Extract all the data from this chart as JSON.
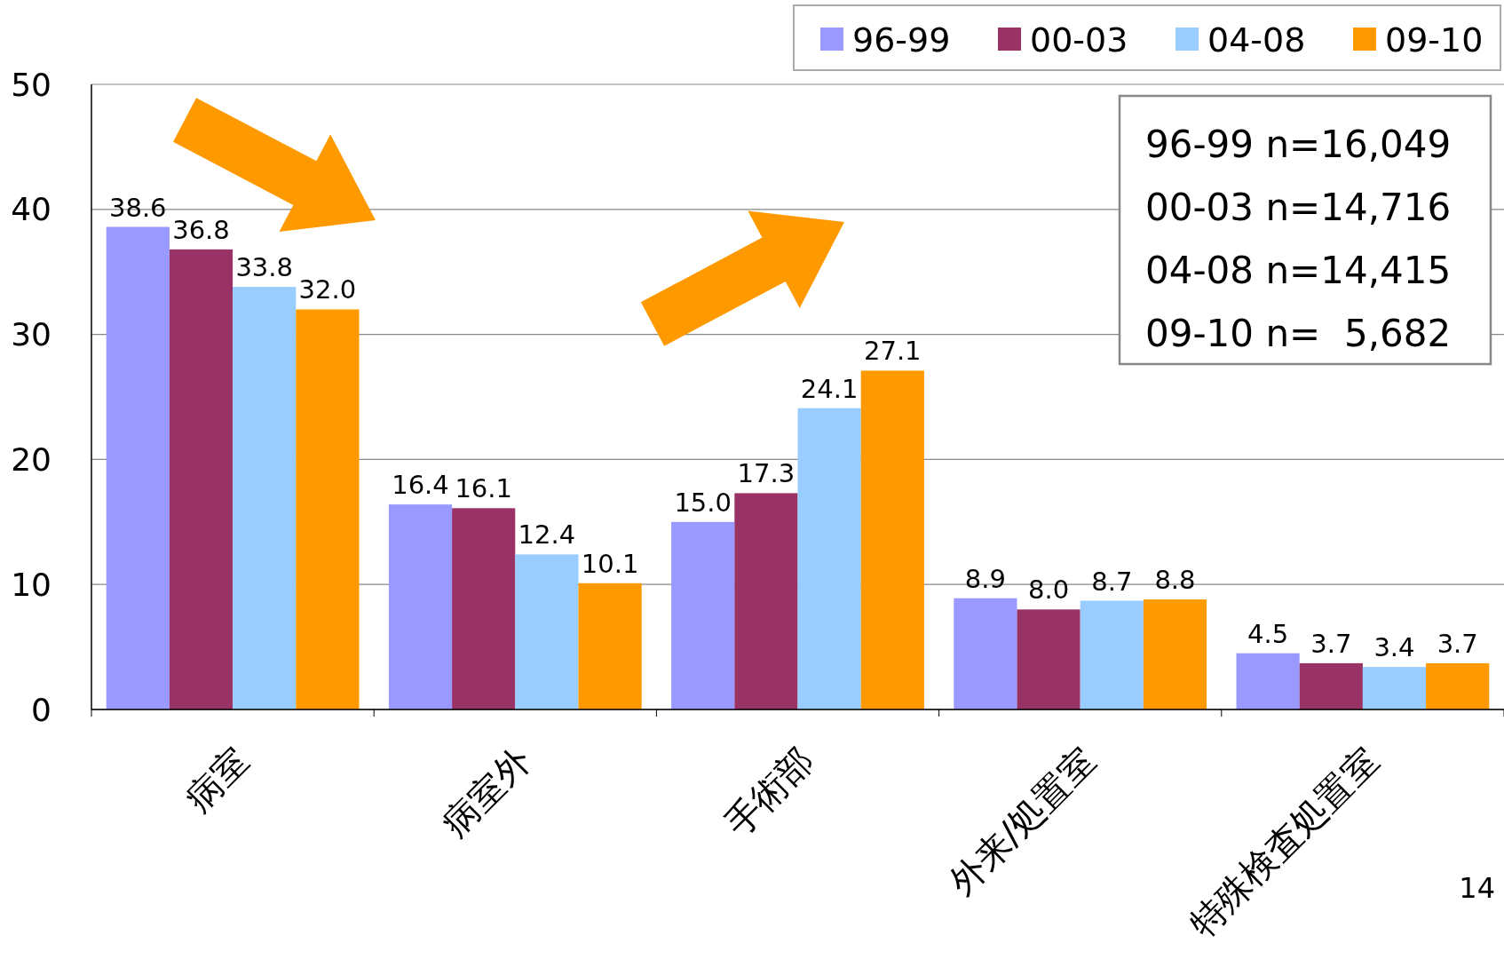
{
  "chart_data": {
    "type": "bar",
    "categories": [
      "病室",
      "病室外",
      "手術部",
      "外来/処置室",
      "特殊検査処置室"
    ],
    "series": [
      {
        "name": "96-99",
        "color": "#9999ff",
        "values": [
          38.6,
          16.4,
          15,
          8.9,
          4.5
        ],
        "value_labels": [
          "38.6",
          "16.4",
          "15.0",
          "8.9",
          "4.5"
        ]
      },
      {
        "name": "00-03",
        "color": "#993366",
        "values": [
          36.8,
          16.1,
          17.3,
          8,
          3.7
        ],
        "value_labels": [
          "36.8",
          "16.1",
          "17.3",
          "8.0",
          "3.7"
        ]
      },
      {
        "name": "04-08",
        "color": "#99ccff",
        "values": [
          33.8,
          12.4,
          24.1,
          8.7,
          3.4
        ],
        "value_labels": [
          "33.8",
          "12.4",
          "24.1",
          "8.7",
          "3.4"
        ]
      },
      {
        "name": "09-10",
        "color": "#ff9900",
        "values": [
          32,
          10.1,
          27.1,
          8.8,
          3.7
        ],
        "value_labels": [
          "32.0",
          "10.1",
          "27.1",
          "8.8",
          "3.7"
        ]
      }
    ],
    "ylim": [
      0,
      50
    ],
    "yticks": [
      0,
      10,
      20,
      30,
      40,
      50
    ],
    "grid": "y",
    "legend": "top right",
    "annotations": [
      "96-99 n=16,049",
      "00-03 n=14,716",
      "04-08 n=14,415",
      "09-10 n=  5,682",
      "14"
    ]
  }
}
